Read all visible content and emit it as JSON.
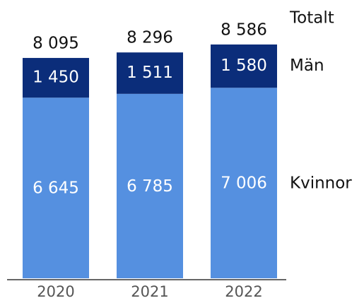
{
  "chart_data": {
    "type": "stacked_bar",
    "categories": [
      "2020",
      "2021",
      "2022"
    ],
    "series": [
      {
        "name": "Kvinnor",
        "color": "#5590e0",
        "values": [
          6645,
          6785,
          7006
        ],
        "value_labels": [
          "6 645",
          "6 785",
          "7 006"
        ]
      },
      {
        "name": "Män",
        "color": "#0b2d7a",
        "values": [
          1450,
          1511,
          1580
        ],
        "value_labels": [
          "1 450",
          "1 511",
          "1 580"
        ]
      }
    ],
    "totals": {
      "name": "Totalt",
      "values": [
        8095,
        8296,
        8586
      ],
      "value_labels": [
        "8 095",
        "8 296",
        "8 586"
      ]
    }
  }
}
